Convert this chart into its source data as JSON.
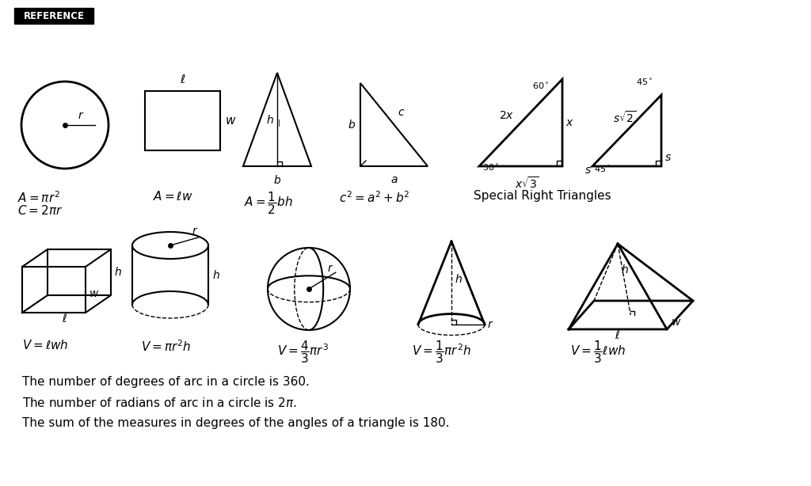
{
  "title": "REFERENCE",
  "bg_color": "#ffffff",
  "line_color": "#000000",
  "notes": [
    "The number of degrees of arc in a circle is 360.",
    "The number of radians of arc in a circle is $2\\pi$.",
    "The sum of the measures in degrees of the angles of a triangle is 180."
  ]
}
